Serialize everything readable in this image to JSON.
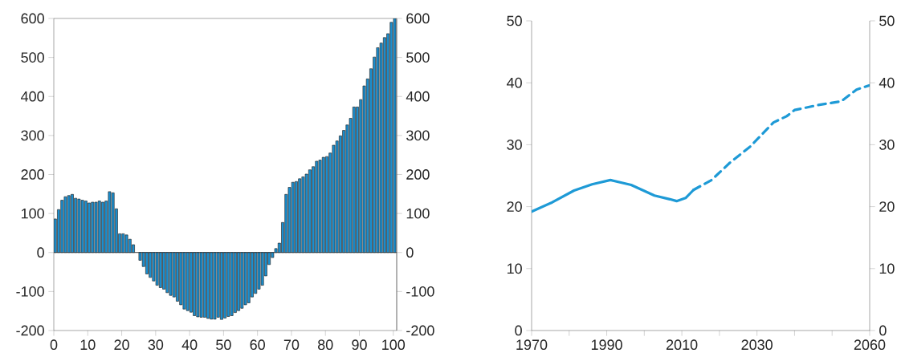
{
  "chart_data": [
    {
      "type": "bar",
      "color": "#1a8fd0",
      "x": [
        0,
        1,
        2,
        3,
        4,
        5,
        6,
        7,
        8,
        9,
        10,
        11,
        12,
        13,
        14,
        15,
        16,
        17,
        18,
        19,
        20,
        21,
        22,
        23,
        24,
        25,
        26,
        27,
        28,
        29,
        30,
        31,
        32,
        33,
        34,
        35,
        36,
        37,
        38,
        39,
        40,
        41,
        42,
        43,
        44,
        45,
        46,
        47,
        48,
        49,
        50,
        51,
        52,
        53,
        54,
        55,
        56,
        57,
        58,
        59,
        60,
        61,
        62,
        63,
        64,
        65,
        66,
        67,
        68,
        69,
        70,
        71,
        72,
        73,
        74,
        75,
        76,
        77,
        78,
        79,
        80,
        81,
        82,
        83,
        84,
        85,
        86,
        87,
        88,
        89,
        90,
        91,
        92,
        93,
        94,
        95,
        96,
        97,
        98,
        99,
        100
      ],
      "values": [
        86,
        110,
        134,
        143,
        146,
        149,
        139,
        137,
        134,
        132,
        127,
        129,
        129,
        132,
        129,
        132,
        156,
        153,
        112,
        48,
        48,
        45,
        34,
        20,
        null,
        -20,
        -36,
        -55,
        -64,
        -73,
        -84,
        -90,
        -94,
        -103,
        -110,
        -114,
        -125,
        -134,
        -145,
        -149,
        -153,
        -162,
        -165,
        -166,
        -166,
        -169,
        -171,
        -171,
        -166,
        -172,
        -168,
        -164,
        -162,
        -154,
        -149,
        -143,
        -134,
        -129,
        -114,
        -105,
        -94,
        -84,
        -60,
        -31,
        -13,
        10,
        24,
        77,
        149,
        167,
        180,
        182,
        189,
        194,
        201,
        212,
        220,
        234,
        237,
        244,
        246,
        255,
        275,
        286,
        299,
        313,
        327,
        344,
        373,
        373,
        392,
        427,
        445,
        471,
        501,
        525,
        537,
        551,
        561,
        590,
        600
      ],
      "xlim": [
        0,
        101
      ],
      "xticks": [
        0,
        10,
        20,
        30,
        40,
        50,
        60,
        70,
        80,
        90,
        100
      ],
      "ylim": [
        -200,
        600
      ],
      "yticks": [
        -200,
        -100,
        0,
        100,
        200,
        300,
        400,
        500,
        600
      ],
      "y2lim": [
        -200,
        600
      ],
      "y2ticks": [
        -200,
        -100,
        0,
        100,
        200,
        300,
        400,
        500,
        600
      ]
    },
    {
      "type": "line",
      "series": [
        {
          "color": "#1e9ad6",
          "line_style": "solid",
          "x": [
            1970,
            1975.5,
            1981.3,
            1986.1,
            1991,
            1996.5,
            2002.7,
            2006.8,
            2008.6,
            2011,
            2013.1
          ],
          "values": [
            19.2,
            20.7,
            22.6,
            23.6,
            24.3,
            23.5,
            21.8,
            21.2,
            20.9,
            21.4,
            22.7
          ]
        },
        {
          "color": "#1e9ad6",
          "line_style": "dashed",
          "x": [
            2013.1,
            2017.9,
            2022.8,
            2028.2,
            2034.4,
            2037.9,
            2040,
            2046.2,
            2052.4,
            2056.5,
            2060
          ],
          "values": [
            22.7,
            24.3,
            27.1,
            29.7,
            33.6,
            34.6,
            35.6,
            36.4,
            37.0,
            38.9,
            39.6
          ]
        }
      ],
      "xlim": [
        1970,
        2060
      ],
      "xticks": [
        1970,
        {
          "value": 1980,
          "label": null
        },
        1990,
        {
          "value": 2000,
          "label": null
        },
        2010,
        {
          "value": 2020,
          "label": null
        },
        2030,
        {
          "value": 2040,
          "label": null
        },
        {
          "value": 2050,
          "label": null
        },
        2060
      ],
      "ylim": [
        0,
        50
      ],
      "yticks": [
        0,
        10,
        20,
        30,
        40,
        50
      ],
      "y2lim": [
        0,
        50
      ],
      "y2ticks": [
        0,
        10,
        20,
        30,
        40,
        50
      ]
    }
  ]
}
